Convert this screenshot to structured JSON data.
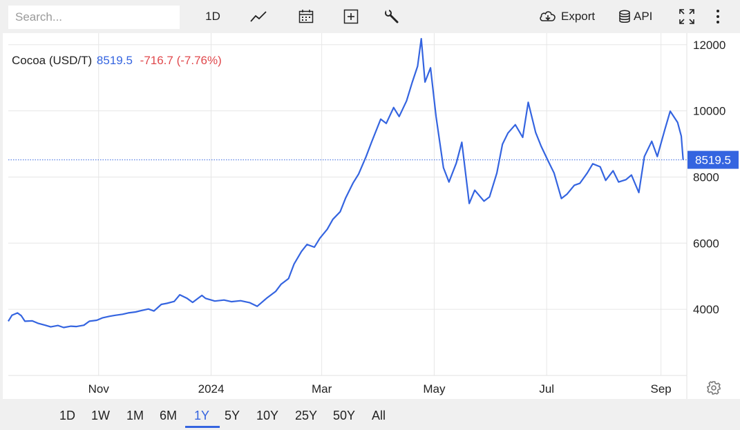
{
  "toolbar": {
    "search_placeholder": "Search...",
    "interval_label": "1D",
    "export_label": "Export",
    "api_label": "API",
    "icons": [
      "line-chart-icon",
      "calendar-icon",
      "add-indicator-icon",
      "wrench-icon",
      "cloud-download-icon",
      "database-icon",
      "fullscreen-icon",
      "more-vertical-icon"
    ]
  },
  "legend": {
    "name": "Cocoa (USD/T)",
    "value": "8519.5",
    "change": "-716.7 (-7.76%)"
  },
  "ranges": {
    "items": [
      "1D",
      "1W",
      "1M",
      "6M",
      "1Y",
      "5Y",
      "10Y",
      "25Y",
      "50Y",
      "All"
    ],
    "active": "1Y"
  },
  "colors": {
    "line": "#3464e0",
    "negative": "#e0484c",
    "grid": "#e6e6e6"
  },
  "chart_data": {
    "type": "line",
    "title": "Cocoa (USD/T)",
    "last_value_label": "8519.5",
    "last_value": 8519.5,
    "x_tick_labels": [
      "Nov",
      "2024",
      "Mar",
      "May",
      "Jul",
      "Sep"
    ],
    "x_ticks": [
      "2023-11-01",
      "2024-01-01",
      "2024-03-01",
      "2024-05-01",
      "2024-07-01",
      "2024-09-01"
    ],
    "y_ticks": [
      4000,
      6000,
      8000,
      10000,
      12000
    ],
    "ylim": [
      2000,
      12350
    ],
    "xlim": [
      "2023-09-13",
      "2024-09-15"
    ],
    "grid": true,
    "axis_side": "right",
    "series": [
      {
        "points": [
          [
            "2023-09-13",
            3640
          ],
          [
            "2023-09-15",
            3820
          ],
          [
            "2023-09-18",
            3890
          ],
          [
            "2023-09-20",
            3810
          ],
          [
            "2023-09-22",
            3640
          ],
          [
            "2023-09-26",
            3650
          ],
          [
            "2023-09-29",
            3580
          ],
          [
            "2023-10-03",
            3520
          ],
          [
            "2023-10-06",
            3470
          ],
          [
            "2023-10-10",
            3510
          ],
          [
            "2023-10-13",
            3450
          ],
          [
            "2023-10-17",
            3490
          ],
          [
            "2023-10-20",
            3480
          ],
          [
            "2023-10-24",
            3520
          ],
          [
            "2023-10-27",
            3640
          ],
          [
            "2023-10-31",
            3670
          ],
          [
            "2023-11-03",
            3740
          ],
          [
            "2023-11-07",
            3790
          ],
          [
            "2023-11-10",
            3820
          ],
          [
            "2023-11-14",
            3850
          ],
          [
            "2023-11-17",
            3890
          ],
          [
            "2023-11-21",
            3920
          ],
          [
            "2023-11-24",
            3960
          ],
          [
            "2023-11-28",
            4010
          ],
          [
            "2023-12-01",
            3950
          ],
          [
            "2023-12-05",
            4150
          ],
          [
            "2023-12-08",
            4180
          ],
          [
            "2023-12-12",
            4240
          ],
          [
            "2023-12-15",
            4440
          ],
          [
            "2023-12-19",
            4330
          ],
          [
            "2023-12-22",
            4210
          ],
          [
            "2023-12-27",
            4420
          ],
          [
            "2023-12-29",
            4330
          ],
          [
            "2024-01-03",
            4250
          ],
          [
            "2024-01-08",
            4280
          ],
          [
            "2024-01-12",
            4230
          ],
          [
            "2024-01-17",
            4260
          ],
          [
            "2024-01-22",
            4200
          ],
          [
            "2024-01-26",
            4090
          ],
          [
            "2024-01-31",
            4330
          ],
          [
            "2024-02-05",
            4540
          ],
          [
            "2024-02-08",
            4760
          ],
          [
            "2024-02-12",
            4930
          ],
          [
            "2024-02-15",
            5370
          ],
          [
            "2024-02-19",
            5750
          ],
          [
            "2024-02-22",
            5960
          ],
          [
            "2024-02-26",
            5880
          ],
          [
            "2024-02-29",
            6150
          ],
          [
            "2024-03-04",
            6420
          ],
          [
            "2024-03-07",
            6720
          ],
          [
            "2024-03-11",
            6950
          ],
          [
            "2024-03-14",
            7370
          ],
          [
            "2024-03-18",
            7820
          ],
          [
            "2024-03-21",
            8090
          ],
          [
            "2024-03-25",
            8610
          ],
          [
            "2024-03-28",
            9050
          ],
          [
            "2024-04-02",
            9750
          ],
          [
            "2024-04-05",
            9620
          ],
          [
            "2024-04-09",
            10100
          ],
          [
            "2024-04-12",
            9830
          ],
          [
            "2024-04-16",
            10300
          ],
          [
            "2024-04-19",
            10850
          ],
          [
            "2024-04-22",
            11350
          ],
          [
            "2024-04-24",
            12180
          ],
          [
            "2024-04-26",
            10870
          ],
          [
            "2024-04-29",
            11300
          ],
          [
            "2024-05-02",
            9830
          ],
          [
            "2024-05-06",
            8280
          ],
          [
            "2024-05-09",
            7850
          ],
          [
            "2024-05-13",
            8420
          ],
          [
            "2024-05-16",
            9050
          ],
          [
            "2024-05-20",
            7200
          ],
          [
            "2024-05-23",
            7600
          ],
          [
            "2024-05-28",
            7270
          ],
          [
            "2024-05-31",
            7400
          ],
          [
            "2024-06-04",
            8120
          ],
          [
            "2024-06-07",
            8990
          ],
          [
            "2024-06-10",
            9330
          ],
          [
            "2024-06-14",
            9580
          ],
          [
            "2024-06-18",
            9200
          ],
          [
            "2024-06-21",
            10260
          ],
          [
            "2024-06-25",
            9350
          ],
          [
            "2024-06-28",
            8930
          ],
          [
            "2024-07-02",
            8460
          ],
          [
            "2024-07-05",
            8120
          ],
          [
            "2024-07-09",
            7350
          ],
          [
            "2024-07-12",
            7480
          ],
          [
            "2024-07-16",
            7750
          ],
          [
            "2024-07-19",
            7810
          ],
          [
            "2024-07-23",
            8120
          ],
          [
            "2024-07-26",
            8400
          ],
          [
            "2024-07-30",
            8310
          ],
          [
            "2024-08-02",
            7900
          ],
          [
            "2024-08-06",
            8190
          ],
          [
            "2024-08-09",
            7850
          ],
          [
            "2024-08-13",
            7920
          ],
          [
            "2024-08-16",
            8060
          ],
          [
            "2024-08-20",
            7530
          ],
          [
            "2024-08-23",
            8620
          ],
          [
            "2024-08-27",
            9080
          ],
          [
            "2024-08-30",
            8620
          ],
          [
            "2024-09-03",
            9420
          ],
          [
            "2024-09-06",
            9990
          ],
          [
            "2024-09-10",
            9650
          ],
          [
            "2024-09-12",
            9236
          ],
          [
            "2024-09-13",
            8519.5
          ]
        ]
      }
    ]
  }
}
